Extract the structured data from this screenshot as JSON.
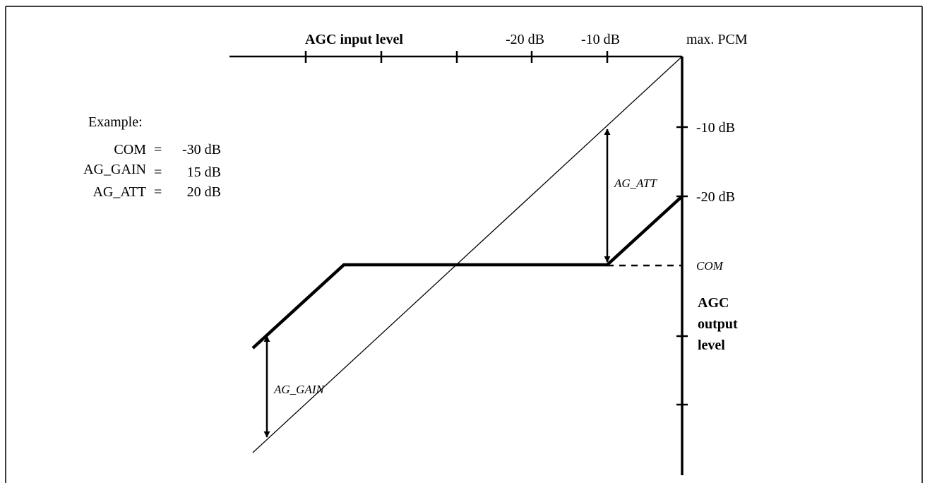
{
  "input_axis": {
    "title": "AGC input level",
    "tick_labels": [
      "-20 dB",
      "-10 dB"
    ],
    "end_label": "max. PCM"
  },
  "output_axis": {
    "tick_labels": [
      "-10 dB",
      "-20 dB"
    ],
    "com_label": "COM",
    "title_lines": [
      "AGC",
      "output",
      "level"
    ]
  },
  "example": {
    "heading": "Example:",
    "rows": [
      {
        "name": "COM",
        "eq": "=",
        "value": "-30 dB"
      },
      {
        "name": "AG_GAIN",
        "eq": "=",
        "value": "15 dB"
      },
      {
        "name": "AG_ATT",
        "eq": "=",
        "value": "20 dB"
      }
    ]
  },
  "annotations": {
    "att": "AG_ATT",
    "gain": "AG_GAIN"
  },
  "colors": {
    "stroke": "#000000",
    "background": "#ffffff"
  }
}
